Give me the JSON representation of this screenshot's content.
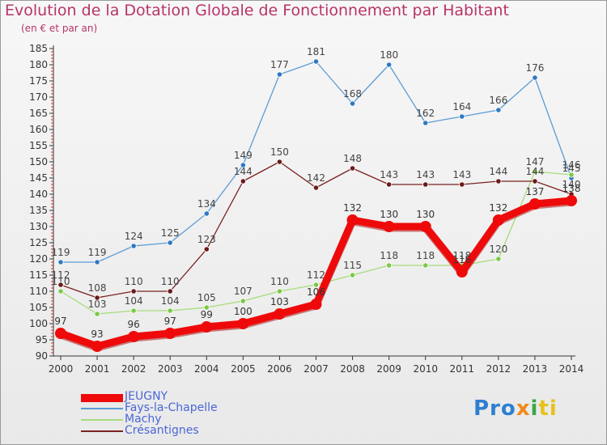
{
  "chart_data": {
    "type": "line",
    "title": "Evolution de la Dotation Globale de Fonctionnement par Habitant",
    "subtitle": "(en € et par an)",
    "xlabel": "",
    "ylabel": "",
    "categories": [
      "2000",
      "2001",
      "2002",
      "2003",
      "2004",
      "2005",
      "2006",
      "2007",
      "2008",
      "2009",
      "2010",
      "2011",
      "2012",
      "2013",
      "2014"
    ],
    "ylim": [
      90,
      185
    ],
    "yticks": [
      90,
      95,
      100,
      105,
      110,
      115,
      120,
      125,
      130,
      135,
      140,
      145,
      150,
      155,
      160,
      165,
      170,
      175,
      180,
      185
    ],
    "grid": false,
    "legend_position": "bottom-left",
    "series": [
      {
        "name": "Fays-la-Chapelle",
        "color": "#5b9bd5",
        "dot": "#2f78c2",
        "values": [
          119,
          119,
          124,
          125,
          134,
          149,
          177,
          181,
          168,
          180,
          162,
          164,
          166,
          176,
          145
        ],
        "labels": [
          "119",
          "119",
          "124",
          "125",
          "134",
          "149",
          "177",
          "181",
          "168",
          "180",
          "162",
          "164",
          "166",
          "176",
          "145"
        ]
      },
      {
        "name": "Machy",
        "color": "#a6dc7a",
        "dot": "#7cc947",
        "values": [
          110,
          103,
          104,
          104,
          105,
          107,
          110,
          112,
          115,
          118,
          118,
          118,
          120,
          147,
          146
        ],
        "labels": [
          "110",
          "103",
          "104",
          "104",
          "105",
          "107",
          "110",
          "112",
          "115",
          "118",
          "118",
          "118",
          "120",
          "147",
          "146"
        ]
      },
      {
        "name": "Crésantignes",
        "color": "#7a2222",
        "dot": "#6a1a1a",
        "values": [
          112,
          108,
          110,
          110,
          123,
          144,
          150,
          142,
          148,
          143,
          143,
          143,
          144,
          144,
          140
        ],
        "labels": [
          "112",
          "108",
          "110",
          "110",
          "123",
          "144",
          "150",
          "142",
          "148",
          "143",
          "143",
          "143",
          "144",
          "144",
          "140"
        ]
      },
      {
        "name": "JEUGNY",
        "color": "#ee0a0a",
        "dot": "#ee0a0a",
        "values": [
          97,
          93,
          96,
          97,
          99,
          100,
          103,
          106,
          132,
          130,
          130,
          116,
          132,
          137,
          138
        ],
        "labels": [
          "97",
          "93",
          "96",
          "97",
          "99",
          "100",
          "103",
          "106",
          "132",
          "130",
          "130",
          "116",
          "132",
          "137",
          "138"
        ]
      }
    ],
    "legend": [
      "JEUGNY",
      "Fays-la-Chapelle",
      "Machy",
      "Crésantignes"
    ]
  },
  "logo_text": "Proxiti",
  "logo_parts": [
    "Pro",
    "x",
    "i",
    "ti"
  ]
}
